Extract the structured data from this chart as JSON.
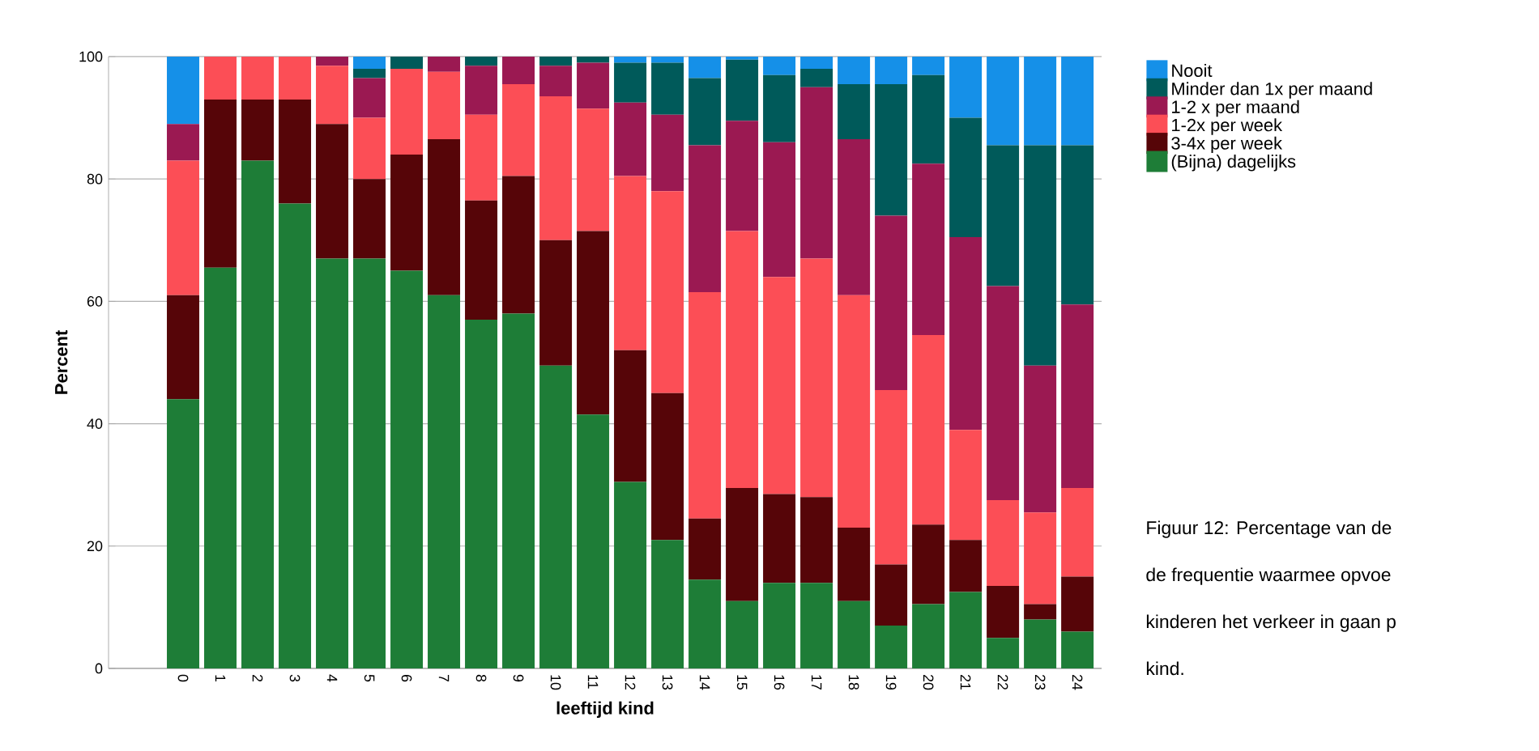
{
  "chart_data": {
    "type": "bar",
    "stacked": true,
    "xlabel": "leeftijd kind",
    "ylabel": "Percent",
    "categories": [
      "0",
      "1",
      "2",
      "3",
      "4",
      "5",
      "6",
      "7",
      "8",
      "9",
      "10",
      "11",
      "12",
      "13",
      "14",
      "15",
      "16",
      "17",
      "18",
      "19",
      "20",
      "21",
      "22",
      "23",
      "24"
    ],
    "ylim": [
      0,
      100
    ],
    "yticks": [
      0,
      20,
      40,
      60,
      80,
      100
    ],
    "grid": "y",
    "legend": "top right",
    "series": [
      {
        "name": "(Bijna) dagelijks",
        "color": "#1e7d37",
        "values": [
          44,
          65.5,
          83,
          76,
          67,
          67,
          65,
          61,
          57,
          58,
          49.5,
          41.5,
          30.5,
          21,
          14.5,
          11,
          14,
          14,
          11,
          7,
          10.5,
          12.5,
          5,
          8,
          6
        ]
      },
      {
        "name": "3-4x per week",
        "color": "#560508",
        "values": [
          17,
          27.5,
          10,
          17,
          22,
          13,
          19,
          25.5,
          19.5,
          22.5,
          20.5,
          30,
          21.5,
          24,
          10,
          18.5,
          14.5,
          14,
          12,
          10,
          13,
          8.5,
          8.5,
          2.5,
          9
        ]
      },
      {
        "name": "1-2x per week",
        "color": "#fc4e56",
        "values": [
          22,
          7,
          7,
          7,
          9.5,
          10,
          14,
          11,
          14,
          15,
          23.5,
          20,
          28.5,
          33,
          37,
          42,
          35.5,
          39,
          38,
          28.5,
          31,
          18,
          14,
          15,
          14.5
        ]
      },
      {
        "name": "1-2 x per maand",
        "color": "#9b1952",
        "values": [
          6,
          0,
          0,
          0,
          1.5,
          6.5,
          0,
          2.5,
          8,
          4.5,
          5,
          7.5,
          12,
          12.5,
          24,
          18,
          22,
          28,
          25.5,
          28.5,
          28,
          31.5,
          35,
          24,
          30
        ]
      },
      {
        "name": "Minder dan 1x per maand",
        "color": "#005a5a",
        "values": [
          0,
          0,
          0,
          0,
          0,
          1.5,
          2,
          0,
          1.5,
          0,
          1.5,
          1,
          6.5,
          8.5,
          11,
          10,
          11,
          3,
          9,
          21.5,
          14.5,
          19.5,
          23,
          36,
          26
        ]
      },
      {
        "name": "Nooit",
        "color": "#1590e8",
        "values": [
          11,
          0,
          0,
          0,
          0,
          2,
          0,
          0,
          0,
          0,
          0,
          0,
          1,
          1,
          3.5,
          0.5,
          3,
          2,
          4.5,
          4.5,
          3,
          10,
          14.5,
          14.5,
          14.5
        ]
      }
    ],
    "annotations": [
      "Figuur 12: Percentage van de",
      "de frequentie waarmee opvoe",
      "kinderen het verkeer in gaan p",
      "kind."
    ]
  }
}
